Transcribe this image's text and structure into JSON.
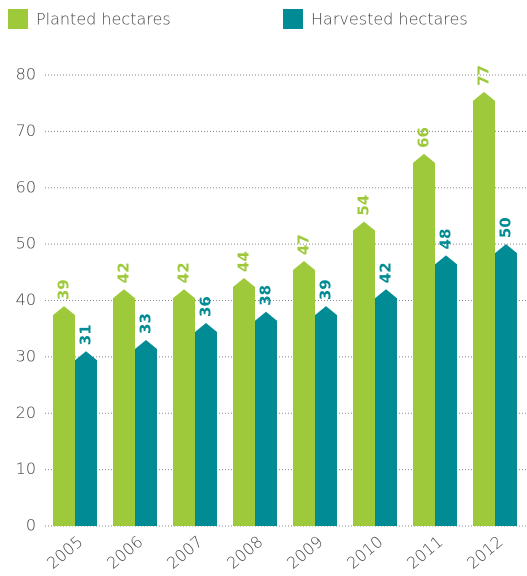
{
  "chart_data": {
    "type": "bar",
    "categories": [
      "2005",
      "2006",
      "2007",
      "2008",
      "2009",
      "2010",
      "2011",
      "2012"
    ],
    "series": [
      {
        "name": "Planted hectares",
        "color": "#9dc93b",
        "values": [
          39,
          42,
          42,
          44,
          47,
          54,
          66,
          77
        ]
      },
      {
        "name": "Harvested hectares",
        "color": "#008b95",
        "values": [
          31,
          33,
          36,
          38,
          39,
          42,
          48,
          50
        ]
      }
    ],
    "ylim": [
      0,
      80
    ],
    "yticks": [
      0,
      10,
      20,
      30,
      40,
      50,
      60,
      70,
      80
    ],
    "grid": true,
    "legend": "top"
  }
}
